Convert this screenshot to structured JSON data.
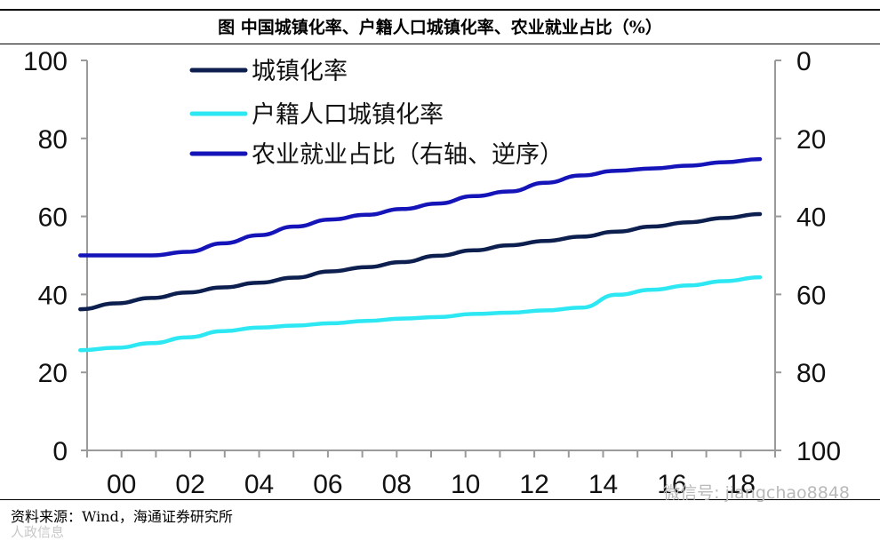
{
  "title": "图 中国城镇化率、户籍人口城镇化率、农业就业占比（%）",
  "source": "资料来源：Wind，海通证券研究所",
  "watermarks": {
    "wechat": "微信号: jiangchao8848",
    "corner": "人政信息"
  },
  "chart_data": {
    "type": "line",
    "x_tick_labels": [
      "00",
      "02",
      "04",
      "06",
      "08",
      "10",
      "12",
      "14",
      "16",
      "18"
    ],
    "x": [
      2000,
      2001,
      2002,
      2003,
      2004,
      2005,
      2006,
      2007,
      2008,
      2009,
      2010,
      2011,
      2012,
      2013,
      2014,
      2015,
      2016,
      2017,
      2018,
      2019
    ],
    "xlim": [
      2000,
      2020
    ],
    "y_left": {
      "lim": [
        0,
        100
      ],
      "ticks": [
        0,
        20,
        40,
        60,
        80,
        100
      ]
    },
    "y_right": {
      "lim": [
        0,
        100
      ],
      "ticks": [
        0,
        20,
        40,
        60,
        80,
        100
      ],
      "inverted": true
    },
    "grid": false,
    "legend_position": "top-left",
    "series": [
      {
        "name": "城镇化率",
        "axis": "left",
        "color": "#0c1f4e",
        "values": [
          36.2,
          37.7,
          39.1,
          40.5,
          41.8,
          43.0,
          44.3,
          45.9,
          47.0,
          48.3,
          49.9,
          51.3,
          52.6,
          53.7,
          54.8,
          56.1,
          57.4,
          58.5,
          59.6,
          60.6
        ]
      },
      {
        "name": "户籍人口城镇化率",
        "axis": "left",
        "color": "#2de8f2",
        "values": [
          25.7,
          26.3,
          27.5,
          29.0,
          30.6,
          31.5,
          32.0,
          32.6,
          33.2,
          33.8,
          34.2,
          35.0,
          35.3,
          35.9,
          36.6,
          39.9,
          41.2,
          42.3,
          43.4,
          44.4
        ]
      },
      {
        "name": "农业就业占比（右轴、逆序）",
        "axis": "right",
        "color": "#1414b8",
        "values": [
          50.0,
          50.0,
          50.0,
          49.1,
          46.9,
          44.8,
          42.6,
          40.8,
          39.6,
          38.1,
          36.7,
          34.8,
          33.6,
          31.4,
          29.5,
          28.3,
          27.7,
          27.0,
          26.1,
          25.3
        ]
      }
    ]
  }
}
